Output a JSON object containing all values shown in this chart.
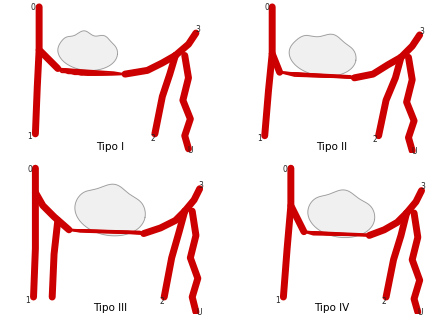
{
  "background_color": "#ffffff",
  "red_color": "#cc0000",
  "kidney_color": "#f0f0f0",
  "kidney_edge_color": "#999999",
  "labels": {
    "tipo1": "Tipo I",
    "tipo2": "Tipo II",
    "tipo3": "Tipo III",
    "tipo4": "Tipo IV"
  },
  "figsize": [
    4.42,
    3.17
  ],
  "dpi": 100
}
